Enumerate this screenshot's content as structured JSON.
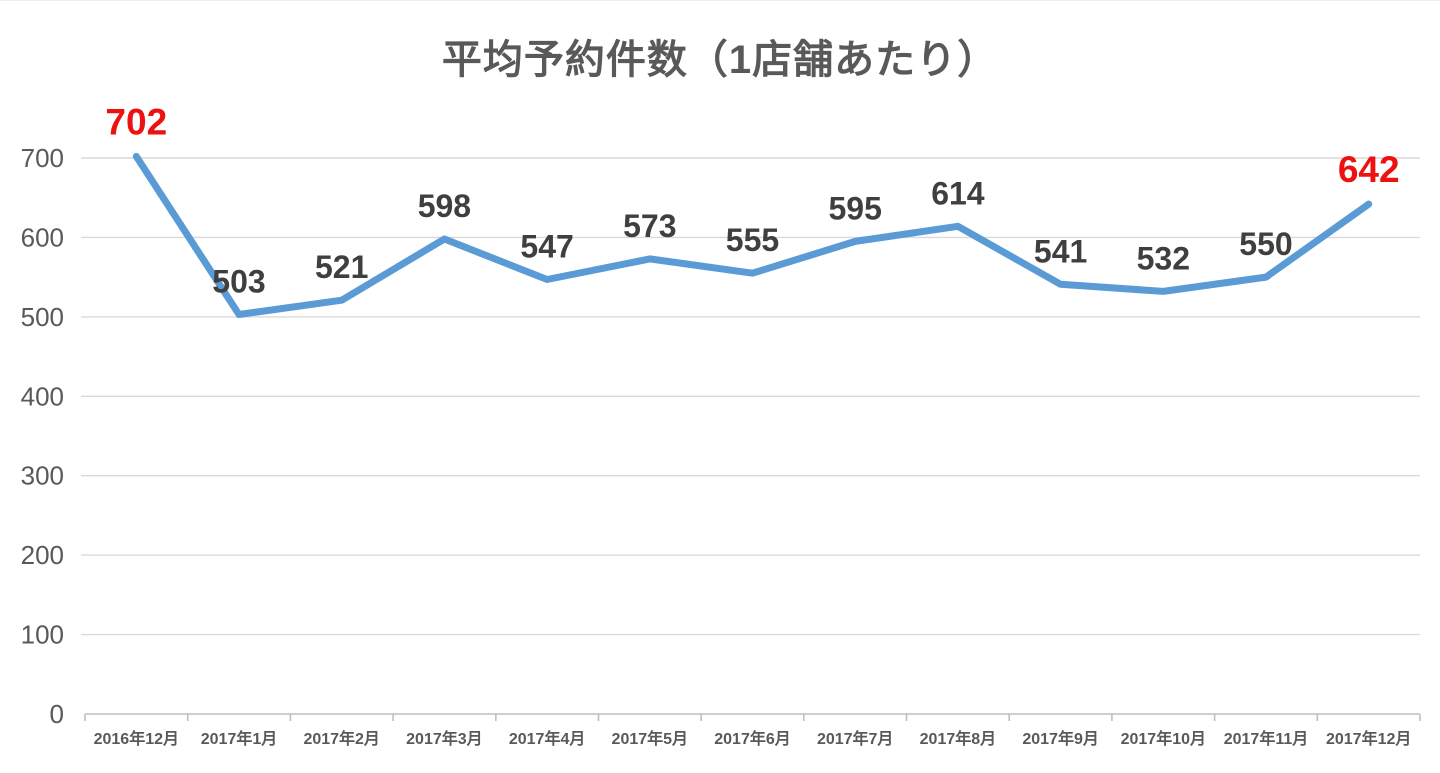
{
  "page": {
    "background": "#FFFFFF"
  },
  "chart_data": {
    "type": "line",
    "title": "平均予約件数（1店舗あたり）",
    "categories": [
      "2016年12月",
      "2017年1月",
      "2017年2月",
      "2017年3月",
      "2017年4月",
      "2017年5月",
      "2017年6月",
      "2017年7月",
      "2017年8月",
      "2017年9月",
      "2017年10月",
      "2017年11月",
      "2017年12月"
    ],
    "values": [
      702,
      503,
      521,
      598,
      547,
      573,
      555,
      595,
      614,
      541,
      532,
      550,
      642
    ],
    "highlight_indices": [
      0,
      12
    ],
    "xlabel": "",
    "ylabel": "",
    "ylim": [
      0,
      700
    ],
    "yticks": [
      0,
      100,
      200,
      300,
      400,
      500,
      600,
      700
    ],
    "grid": true,
    "legend": "none",
    "colors": {
      "line": "#5B9BD5",
      "label": "#3F3F3F",
      "label_highlight": "#EE1111",
      "axis_text": "#595959",
      "gridline": "#D9D9D9",
      "axis_line": "#BFBFBF",
      "title": "#595959"
    }
  }
}
